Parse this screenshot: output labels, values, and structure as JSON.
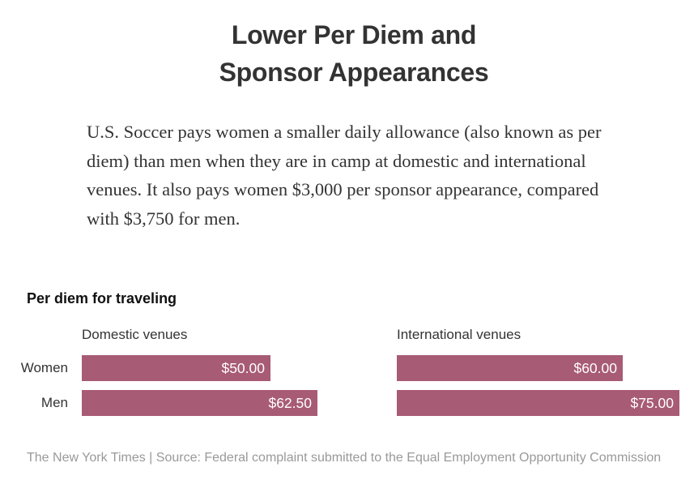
{
  "title_lines": [
    "Lower Per Diem and",
    "Sponsor Appearances"
  ],
  "intro": "U.S. Soccer pays women a smaller daily allowance (also known as per diem) than men when they are in camp at domestic and international venues. It also pays women $3,000 per sponsor appearance, compared with $3,750 for men.",
  "source": "The New York Times | Source: Federal complaint submitted to the Equal Employment Opportunity Commission",
  "colors": {
    "bar": "#a85b75",
    "bar_label": "#ffffff",
    "text": "#333333",
    "source": "#999999"
  },
  "chart_data": {
    "type": "bar",
    "orientation": "horizontal",
    "subtitle": "Per diem for traveling",
    "categories": [
      "Women",
      "Men"
    ],
    "panels": [
      {
        "title": "Domestic venues",
        "values": [
          50.0,
          62.5
        ],
        "labels": [
          "$50.00",
          "$62.50"
        ]
      },
      {
        "title": "International venues",
        "values": [
          60.0,
          75.0
        ],
        "labels": [
          "$60.00",
          "$75.00"
        ]
      }
    ],
    "xlim": [
      0,
      75
    ]
  }
}
